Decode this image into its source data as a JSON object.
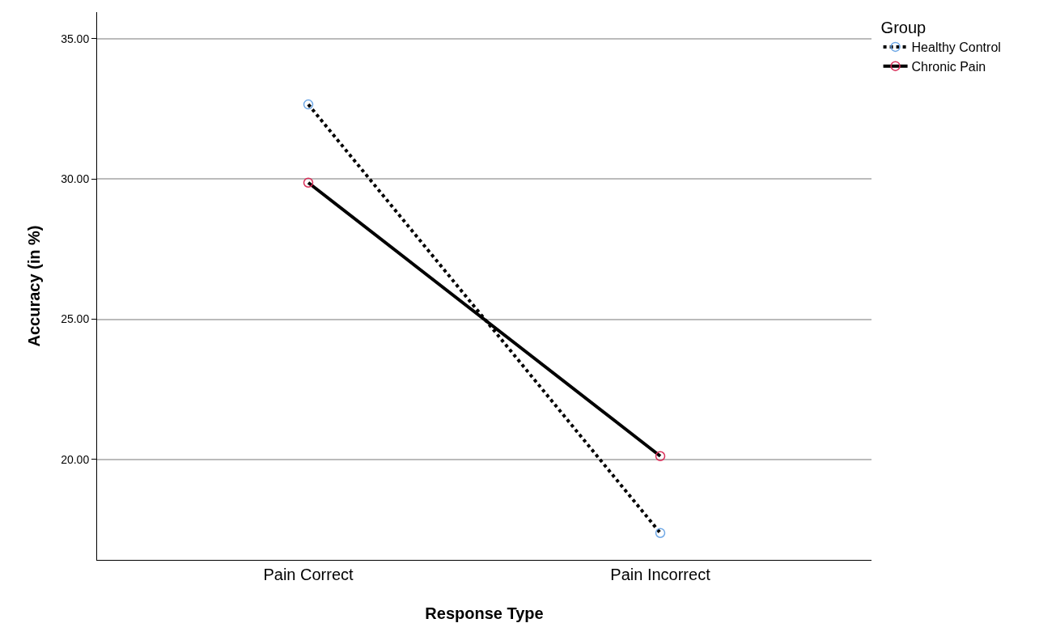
{
  "chart_data": {
    "type": "line",
    "xlabel": "Response Type",
    "ylabel": "Accuracy (in %)",
    "legend_title": "Group",
    "categories": [
      "Pain Correct",
      "Pain Incorrect"
    ],
    "series": [
      {
        "name": "Healthy Control",
        "color": "#000000",
        "colors": [
          "#6fa8e6",
          "#6fa8e6"
        ],
        "line_style": "dotted",
        "values": [
          32.66,
          17.38
        ]
      },
      {
        "name": "Chronic Pain",
        "color": "#000000",
        "colors": [
          "#d9305a",
          "#d9305a"
        ],
        "line_style": "solid",
        "values": [
          29.87,
          20.12
        ]
      }
    ],
    "ylim": [
      16.42,
      35.95
    ],
    "yticks": [
      {
        "value": 20,
        "label": "20.00"
      },
      {
        "value": 25,
        "label": "25.00"
      },
      {
        "value": 30,
        "label": "30.00"
      },
      {
        "value": 35,
        "label": "35.00"
      }
    ],
    "grid": "y",
    "legend": "top right",
    "marker": "circle"
  }
}
